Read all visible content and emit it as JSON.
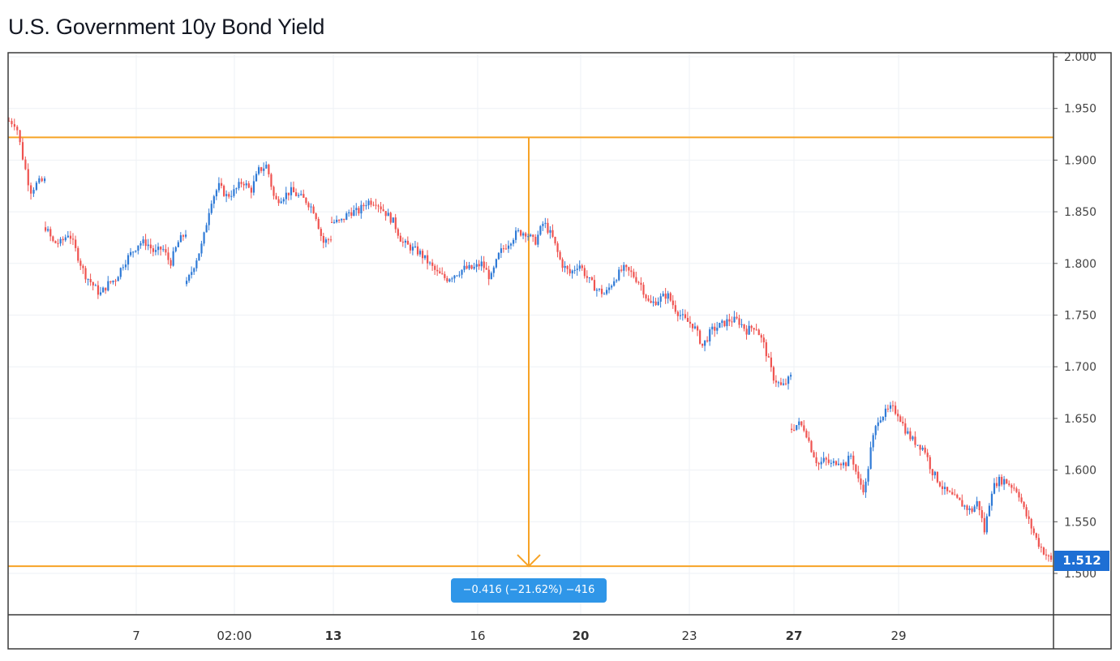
{
  "chart_data": {
    "type": "candlestick",
    "title": "U.S. Government 10y Bond Yield",
    "xlabel": "",
    "ylabel": "",
    "ylim": [
      1.44,
      2.005
    ],
    "y_ticks": [
      "2.000",
      "1.950",
      "1.900",
      "1.850",
      "1.800",
      "1.750",
      "1.700",
      "1.650",
      "1.600",
      "1.550",
      "1.500"
    ],
    "x_ticks": [
      {
        "label": "7",
        "bold": false
      },
      {
        "label": "02:00",
        "bold": false
      },
      {
        "label": "13",
        "bold": true
      },
      {
        "label": "16",
        "bold": false
      },
      {
        "label": "20",
        "bold": true
      },
      {
        "label": "23",
        "bold": false
      },
      {
        "label": "27",
        "bold": true
      },
      {
        "label": "29",
        "bold": false
      }
    ],
    "grid": true,
    "segments": [
      {
        "start": 1.938,
        "path": [
          1.935,
          1.9,
          1.87,
          1.878,
          1.88
        ]
      },
      {
        "start": 1.835,
        "path": [
          1.82,
          1.82,
          1.83,
          1.81,
          1.79,
          1.78,
          1.77,
          1.78,
          1.785,
          1.8,
          1.81,
          1.82,
          1.82,
          1.81,
          1.815,
          1.8,
          1.82,
          1.83
        ]
      },
      {
        "start": 1.78,
        "path": [
          1.8,
          1.82,
          1.86,
          1.875,
          1.865,
          1.87,
          1.88,
          1.87,
          1.89,
          1.895,
          1.86,
          1.865,
          1.87,
          1.865,
          1.86,
          1.85,
          1.82,
          1.825
        ]
      },
      {
        "start": 1.84,
        "path": [
          1.84,
          1.85,
          1.85,
          1.86,
          1.86,
          1.85,
          1.84,
          1.82,
          1.815,
          1.81,
          1.8,
          1.79,
          1.785,
          1.79,
          1.795,
          1.795,
          1.8,
          1.785,
          1.81,
          1.82,
          1.83,
          1.83,
          1.82,
          1.84,
          1.825,
          1.8,
          1.79,
          1.8,
          1.785,
          1.775,
          1.77,
          1.785,
          1.795,
          1.79,
          1.78,
          1.76,
          1.765,
          1.77,
          1.755,
          1.745,
          1.74,
          1.72,
          1.735,
          1.74,
          1.745,
          1.745,
          1.735,
          1.74,
          1.72,
          1.69,
          1.68,
          1.69
        ]
      },
      {
        "start": 1.64,
        "path": [
          1.645,
          1.64,
          1.62,
          1.605,
          1.61,
          1.605,
          1.61,
          1.605,
          1.615,
          1.59,
          1.58,
          1.625,
          1.65,
          1.655,
          1.66,
          1.655,
          1.64,
          1.63,
          1.625,
          1.62,
          1.6,
          1.59,
          1.58,
          1.575,
          1.57,
          1.565,
          1.56,
          1.57,
          1.54,
          1.58,
          1.59,
          1.59,
          1.585,
          1.58,
          1.56,
          1.545,
          1.53,
          1.52,
          1.512
        ]
      }
    ],
    "annotations": {
      "upper_level": 1.922,
      "lower_level": 1.507,
      "measure_text": "−0.416 (−21.62%) −416",
      "last_price": "1.512"
    },
    "colors": {
      "up": "#2f7ad6",
      "down": "#ef5350",
      "level_line": "#f7a326",
      "axis": "#3a3a3a",
      "grid": "#eef1f5",
      "measure_bg": "#2f96e8",
      "price_tag_bg": "#1e6fd4"
    }
  }
}
